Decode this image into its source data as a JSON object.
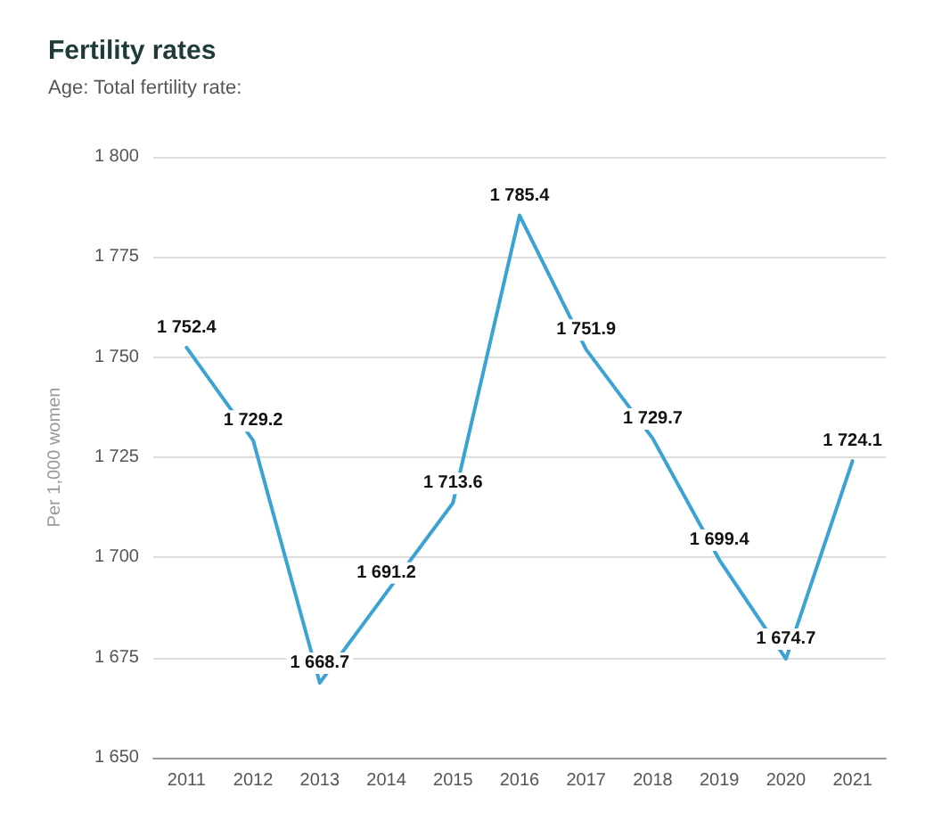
{
  "chart_data": {
    "type": "line",
    "title": "Fertility rates",
    "subtitle": "Age: Total fertility rate:",
    "ylabel": "Per 1,000 women",
    "categories": [
      "2011",
      "2012",
      "2013",
      "2014",
      "2015",
      "2016",
      "2017",
      "2018",
      "2019",
      "2020",
      "2021"
    ],
    "series": [
      {
        "color": "#3ba3d3",
        "values": [
          1752.4,
          1729.2,
          1668.7,
          1691.2,
          1713.6,
          1785.4,
          1751.9,
          1729.7,
          1699.4,
          1674.7,
          1724.1
        ],
        "value_labels": [
          "1 752.4",
          "1 729.2",
          "1 668.7",
          "1 691.2",
          "1 713.6",
          "1 785.4",
          "1 751.9",
          "1 729.7",
          "1 699.4",
          "1 674.7",
          "1 724.1"
        ]
      }
    ],
    "ylim": [
      1650,
      1800
    ],
    "yticks": [
      {
        "value": 1650,
        "label": "1 650"
      },
      {
        "value": 1675,
        "label": "1 675"
      },
      {
        "value": 1700,
        "label": "1 700"
      },
      {
        "value": 1725,
        "label": "1 725"
      },
      {
        "value": 1750,
        "label": "1 750"
      },
      {
        "value": 1775,
        "label": "1 775"
      },
      {
        "value": 1800,
        "label": "1 800"
      }
    ],
    "grid": "y",
    "marker": "none",
    "line_style": "solid"
  }
}
